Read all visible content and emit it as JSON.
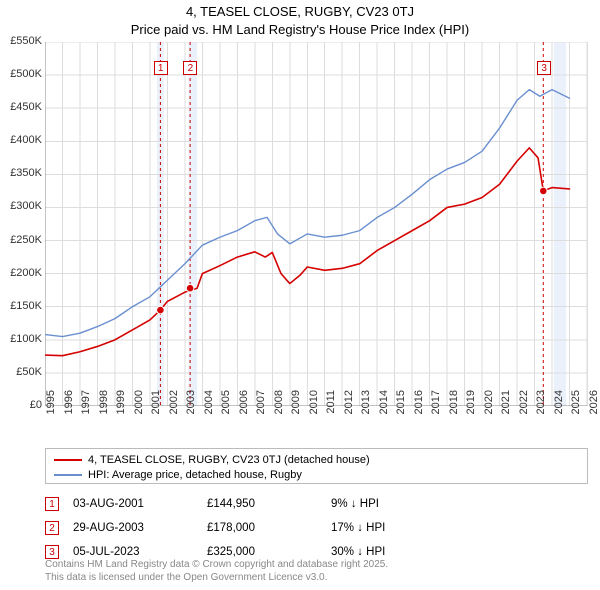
{
  "title": "4, TEASEL CLOSE, RUGBY, CV23 0TJ",
  "subtitle": "Price paid vs. HM Land Registry's House Price Index (HPI)",
  "chart": {
    "type": "line",
    "x_domain": [
      1995,
      2026
    ],
    "y_domain": [
      0,
      550000
    ],
    "background_color": "#ffffff",
    "grid_color": "#dddddd",
    "axis_line_color": "#888888",
    "tick_font_size": 11,
    "y_ticks": [
      0,
      50000,
      100000,
      150000,
      200000,
      250000,
      300000,
      350000,
      400000,
      450000,
      500000,
      550000
    ],
    "y_tick_labels": [
      "£0",
      "£50K",
      "£100K",
      "£150K",
      "£200K",
      "£250K",
      "£300K",
      "£350K",
      "£400K",
      "£450K",
      "£500K",
      "£550K"
    ],
    "x_ticks": [
      1995,
      1996,
      1997,
      1998,
      1999,
      2000,
      2001,
      2002,
      2003,
      2004,
      2005,
      2006,
      2007,
      2008,
      2009,
      2010,
      2011,
      2012,
      2013,
      2014,
      2015,
      2016,
      2017,
      2018,
      2019,
      2020,
      2021,
      2022,
      2023,
      2024,
      2025,
      2026
    ],
    "shaded_ranges": [
      {
        "x0": 2001.4,
        "x1": 2001.8
      },
      {
        "x0": 2003.2,
        "x1": 2003.7
      },
      {
        "x0": 2024.1,
        "x1": 2024.8
      }
    ],
    "event_markers": [
      {
        "n": "1",
        "x": 2001.6,
        "y_badge": 510000,
        "y_dot": 145000,
        "dashed_line_color": "#cc0000"
      },
      {
        "n": "2",
        "x": 2003.3,
        "y_badge": 510000,
        "y_dot": 178000,
        "dashed_line_color": "#cc0000"
      },
      {
        "n": "3",
        "x": 2023.5,
        "y_badge": 510000,
        "y_dot": 325000,
        "dashed_line_color": "#cc0000"
      }
    ],
    "series": [
      {
        "name": "price_paid",
        "label": "4, TEASEL CLOSE, RUGBY, CV23 0TJ (detached house)",
        "color": "#d50000",
        "line_width": 1.6,
        "points": [
          [
            1995.0,
            77000
          ],
          [
            1996.0,
            76000
          ],
          [
            1997.0,
            82000
          ],
          [
            1998.0,
            90000
          ],
          [
            1999.0,
            100000
          ],
          [
            2000.0,
            115000
          ],
          [
            2001.0,
            130000
          ],
          [
            2001.6,
            145000
          ],
          [
            2002.0,
            158000
          ],
          [
            2003.0,
            172000
          ],
          [
            2003.7,
            178000
          ],
          [
            2004.0,
            200000
          ],
          [
            2005.0,
            212000
          ],
          [
            2006.0,
            225000
          ],
          [
            2007.0,
            233000
          ],
          [
            2007.6,
            225000
          ],
          [
            2008.0,
            232000
          ],
          [
            2008.5,
            200000
          ],
          [
            2009.0,
            185000
          ],
          [
            2009.6,
            198000
          ],
          [
            2010.0,
            210000
          ],
          [
            2011.0,
            205000
          ],
          [
            2012.0,
            208000
          ],
          [
            2013.0,
            215000
          ],
          [
            2014.0,
            235000
          ],
          [
            2015.0,
            250000
          ],
          [
            2016.0,
            265000
          ],
          [
            2017.0,
            280000
          ],
          [
            2018.0,
            300000
          ],
          [
            2019.0,
            305000
          ],
          [
            2020.0,
            315000
          ],
          [
            2021.0,
            335000
          ],
          [
            2022.0,
            370000
          ],
          [
            2022.7,
            390000
          ],
          [
            2023.2,
            375000
          ],
          [
            2023.5,
            325000
          ],
          [
            2024.0,
            330000
          ],
          [
            2025.0,
            328000
          ]
        ]
      },
      {
        "name": "hpi",
        "label": "HPI: Average price, detached house, Rugby",
        "color": "#6a8fd0",
        "line_width": 1.4,
        "points": [
          [
            1995.0,
            108000
          ],
          [
            1996.0,
            105000
          ],
          [
            1997.0,
            110000
          ],
          [
            1998.0,
            120000
          ],
          [
            1999.0,
            132000
          ],
          [
            2000.0,
            150000
          ],
          [
            2001.0,
            165000
          ],
          [
            2002.0,
            190000
          ],
          [
            2003.0,
            215000
          ],
          [
            2004.0,
            243000
          ],
          [
            2005.0,
            255000
          ],
          [
            2006.0,
            265000
          ],
          [
            2007.0,
            280000
          ],
          [
            2007.7,
            285000
          ],
          [
            2008.3,
            260000
          ],
          [
            2009.0,
            245000
          ],
          [
            2010.0,
            260000
          ],
          [
            2011.0,
            255000
          ],
          [
            2012.0,
            258000
          ],
          [
            2013.0,
            265000
          ],
          [
            2014.0,
            285000
          ],
          [
            2015.0,
            300000
          ],
          [
            2016.0,
            320000
          ],
          [
            2017.0,
            342000
          ],
          [
            2018.0,
            358000
          ],
          [
            2019.0,
            368000
          ],
          [
            2020.0,
            385000
          ],
          [
            2021.0,
            420000
          ],
          [
            2022.0,
            462000
          ],
          [
            2022.7,
            478000
          ],
          [
            2023.3,
            468000
          ],
          [
            2024.0,
            478000
          ],
          [
            2025.0,
            465000
          ]
        ]
      }
    ],
    "event_dot_color": "#d50000",
    "event_dot_radius": 3.8
  },
  "legend": {
    "border_color": "#bbbbbb",
    "items": [
      {
        "color": "#d50000",
        "label": "4, TEASEL CLOSE, RUGBY, CV23 0TJ (detached house)"
      },
      {
        "color": "#6a8fd0",
        "label": "HPI: Average price, detached house, Rugby"
      }
    ]
  },
  "events_table": [
    {
      "n": "1",
      "date": "03-AUG-2001",
      "price": "£144,950",
      "diff": "9% ↓ HPI",
      "box_color": "#cc0000"
    },
    {
      "n": "2",
      "date": "29-AUG-2003",
      "price": "£178,000",
      "diff": "17% ↓ HPI",
      "box_color": "#cc0000"
    },
    {
      "n": "3",
      "date": "05-JUL-2023",
      "price": "£325,000",
      "diff": "30% ↓ HPI",
      "box_color": "#cc0000"
    }
  ],
  "footer": {
    "line1": "Contains HM Land Registry data © Crown copyright and database right 2025.",
    "line2": "This data is licensed under the Open Government Licence v3.0."
  }
}
